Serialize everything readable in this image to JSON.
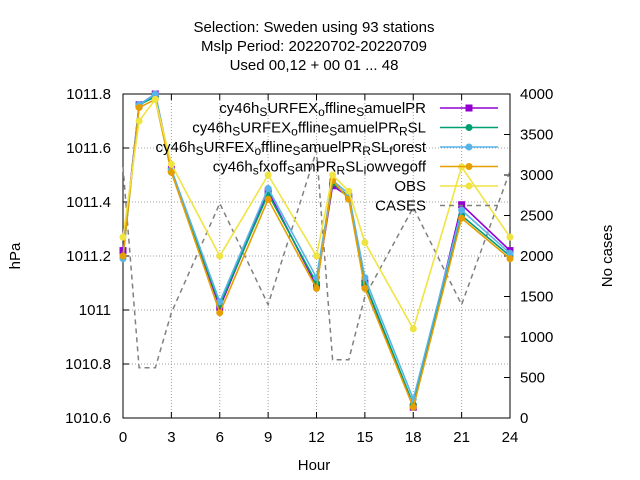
{
  "chart_data": {
    "type": "line",
    "title_lines": [
      "Selection: Sweden using    93 stations",
      "Mslp   Period: 20220702-20220709",
      "Used  00,12  + 00 01 ... 48"
    ],
    "xlabel": "Hour",
    "ylabel": "hPa",
    "y2label": "No cases",
    "xlim": [
      0,
      24
    ],
    "ylim": [
      1010.6,
      1011.8
    ],
    "y2lim": [
      0,
      4000
    ],
    "x_ticks": [
      0,
      3,
      6,
      9,
      12,
      15,
      18,
      21,
      24
    ],
    "y_ticks": [
      1010.6,
      1010.8,
      1011,
      1011.2,
      1011.4,
      1011.6,
      1011.8
    ],
    "y_tick_labels": [
      "1010.6",
      "1010.8",
      "1011",
      "1011.2",
      "1011.4",
      "1011.6",
      "1011.8"
    ],
    "y2_ticks": [
      0,
      500,
      1000,
      1500,
      2000,
      2500,
      3000,
      3500,
      4000
    ],
    "grid": true,
    "legend_position": "top-right",
    "series": [
      {
        "name": "cy46h_SURFEX_offline_SamuelPR",
        "legend_parts": [
          [
            "cy46h",
            ""
          ],
          [
            "S",
            "sub"
          ],
          [
            "URFEX",
            ""
          ],
          [
            "o",
            "sub"
          ],
          [
            "ffline",
            ""
          ],
          [
            "S",
            "sub"
          ],
          [
            "amuelPR",
            ""
          ]
        ],
        "color": "#9400d3",
        "marker": "square",
        "x": [
          0,
          1,
          2,
          3,
          6,
          9,
          12,
          13,
          14,
          15,
          18,
          21,
          24
        ],
        "values": [
          1011.22,
          1011.76,
          1011.8,
          1011.52,
          1011.01,
          1011.44,
          1011.09,
          1011.46,
          1011.42,
          1011.1,
          1010.64,
          1011.39,
          1011.22
        ]
      },
      {
        "name": "cy46h_SURFEX_offline_SamuelPR_RSL",
        "legend_parts": [
          [
            "cy46h",
            ""
          ],
          [
            "S",
            "sub"
          ],
          [
            "URFEX",
            ""
          ],
          [
            "o",
            "sub"
          ],
          [
            "ffline",
            ""
          ],
          [
            "S",
            "sub"
          ],
          [
            "amuelPR",
            ""
          ],
          [
            "R",
            "sub"
          ],
          [
            "SL",
            ""
          ]
        ],
        "color": "#009e73",
        "marker": "circle",
        "x": [
          0,
          1,
          2,
          3,
          6,
          9,
          12,
          13,
          14,
          15,
          18,
          21,
          24
        ],
        "values": [
          1011.2,
          1011.76,
          1011.79,
          1011.51,
          1011.02,
          1011.43,
          1011.1,
          1011.47,
          1011.42,
          1011.1,
          1010.65,
          1011.35,
          1011.2
        ]
      },
      {
        "name": "cy46h_SURFEX_offline_SamuelPR_RSL_forest",
        "legend_parts": [
          [
            "cy46h",
            ""
          ],
          [
            "S",
            "sub"
          ],
          [
            "URFEX",
            ""
          ],
          [
            "o",
            "sub"
          ],
          [
            "ffline",
            ""
          ],
          [
            "S",
            "sub"
          ],
          [
            "amuelPR",
            ""
          ],
          [
            "R",
            "sub"
          ],
          [
            "SL",
            ""
          ],
          [
            "f",
            "sub"
          ],
          [
            "orest",
            ""
          ]
        ],
        "color": "#56b4e9",
        "marker": "circle",
        "x": [
          0,
          1,
          2,
          3,
          6,
          9,
          12,
          13,
          14,
          15,
          18,
          21,
          24
        ],
        "values": [
          1011.19,
          1011.76,
          1011.8,
          1011.52,
          1011.03,
          1011.45,
          1011.12,
          1011.48,
          1011.43,
          1011.12,
          1010.67,
          1011.37,
          1011.21
        ]
      },
      {
        "name": "cy46h_sfxoff_SamPR_RSL_lowvegoff",
        "legend_parts": [
          [
            "cy46h",
            ""
          ],
          [
            "s",
            "sub"
          ],
          [
            "fxoff",
            ""
          ],
          [
            "S",
            "sub"
          ],
          [
            "amPR",
            ""
          ],
          [
            "R",
            "sub"
          ],
          [
            "SL",
            ""
          ],
          [
            "l",
            "sub"
          ],
          [
            "owvegoff",
            ""
          ]
        ],
        "color": "#e69f00",
        "marker": "circle",
        "x": [
          0,
          1,
          2,
          3,
          6,
          9,
          12,
          13,
          14,
          15,
          18,
          21,
          24
        ],
        "values": [
          1011.2,
          1011.75,
          1011.78,
          1011.51,
          1010.99,
          1011.41,
          1011.08,
          1011.48,
          1011.41,
          1011.08,
          1010.64,
          1011.34,
          1011.19
        ]
      },
      {
        "name": "OBS",
        "legend_parts": [
          [
            "OBS",
            ""
          ]
        ],
        "color": "#f0e442",
        "marker": "circle",
        "x": [
          0,
          1,
          2,
          3,
          6,
          9,
          12,
          13,
          14,
          15,
          18,
          21,
          24
        ],
        "values": [
          1011.27,
          1011.7,
          1011.78,
          1011.54,
          1011.2,
          1011.5,
          1011.2,
          1011.5,
          1011.44,
          1011.25,
          1010.93,
          1011.53,
          1011.27
        ]
      },
      {
        "name": "CASES",
        "legend_parts": [
          [
            "CASES",
            ""
          ]
        ],
        "color": "#808080",
        "marker": "none",
        "dashed": true,
        "axis": "y2",
        "x": [
          0,
          1,
          2,
          3,
          6,
          9,
          12,
          13,
          14,
          15,
          18,
          21,
          24
        ],
        "values": [
          3100,
          620,
          620,
          1300,
          2650,
          1400,
          3300,
          720,
          720,
          1500,
          2600,
          1400,
          3050
        ]
      }
    ]
  }
}
